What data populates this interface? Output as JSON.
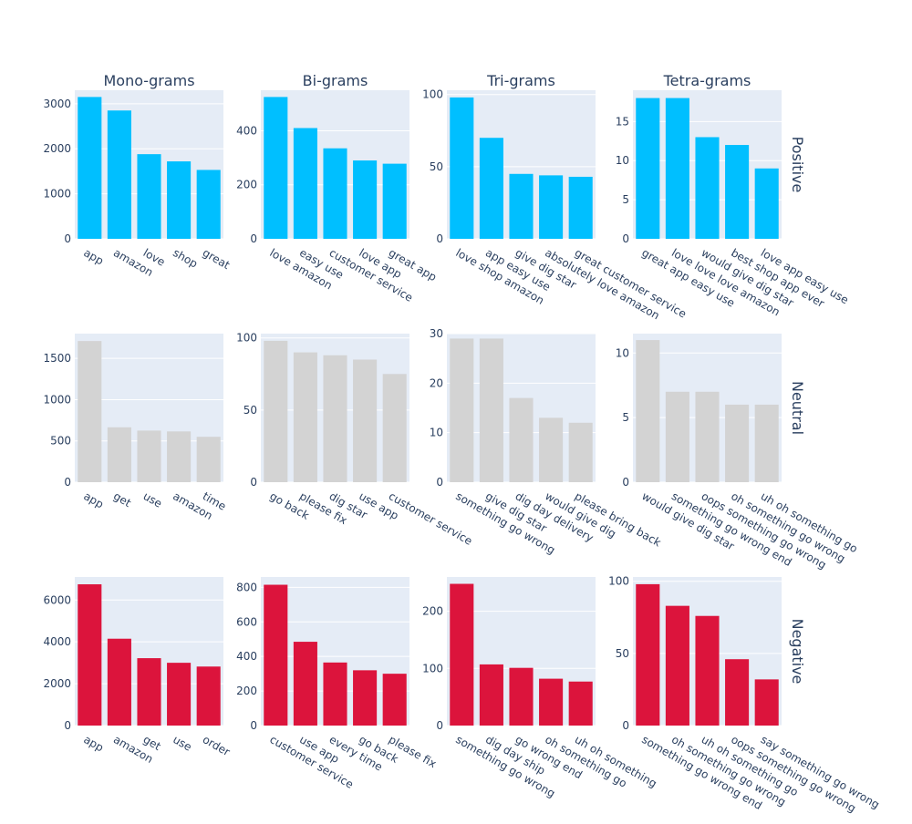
{
  "colors": {
    "Positive": "#00bfff",
    "Neutral": "#d3d3d3",
    "Negative": "#dc143c",
    "plot_bg": "#e5ecf6",
    "grid": "#ffffff",
    "text": "#2a3f5f"
  },
  "column_titles": [
    "Mono-grams",
    "Bi-grams",
    "Tri-grams",
    "Tetra-grams"
  ],
  "row_labels": [
    "Positive",
    "Neutral",
    "Negative"
  ],
  "chart_data": [
    {
      "type": "bar",
      "row": "Positive",
      "column": "Mono-grams",
      "categories": [
        "app",
        "amazon",
        "love",
        "shop",
        "great"
      ],
      "values": [
        3150,
        2850,
        1880,
        1720,
        1530
      ],
      "ylim": [
        0,
        3300
      ],
      "ticks": [
        0,
        1000,
        2000,
        3000
      ]
    },
    {
      "type": "bar",
      "row": "Positive",
      "column": "Bi-grams",
      "categories": [
        "love amazon",
        "easy use",
        "customer service",
        "love app",
        "great app"
      ],
      "values": [
        525,
        410,
        335,
        290,
        278
      ],
      "ylim": [
        0,
        550
      ],
      "ticks": [
        0,
        200,
        400
      ]
    },
    {
      "type": "bar",
      "row": "Positive",
      "column": "Tri-grams",
      "categories": [
        "love shop amazon",
        "app easy use",
        "give dig star",
        "absolutely love amazon",
        "great customer service"
      ],
      "values": [
        98,
        70,
        45,
        44,
        43
      ],
      "ylim": [
        0,
        103
      ],
      "ticks": [
        0,
        50,
        100
      ]
    },
    {
      "type": "bar",
      "row": "Positive",
      "column": "Tetra-grams",
      "categories": [
        "great app easy use",
        "love love love amazon",
        "would give dig star",
        "best shop app ever",
        "love app easy use"
      ],
      "values": [
        18,
        18,
        13,
        12,
        9
      ],
      "ylim": [
        0,
        19
      ],
      "ticks": [
        0,
        5,
        10,
        15
      ]
    },
    {
      "type": "bar",
      "row": "Neutral",
      "column": "Mono-grams",
      "categories": [
        "app",
        "get",
        "use",
        "amazon",
        "time"
      ],
      "values": [
        1710,
        665,
        625,
        615,
        550
      ],
      "ylim": [
        0,
        1800
      ],
      "ticks": [
        0,
        500,
        1000,
        1500
      ]
    },
    {
      "type": "bar",
      "row": "Neutral",
      "column": "Bi-grams",
      "categories": [
        "go back",
        "please fix",
        "dig star",
        "use app",
        "customer service"
      ],
      "values": [
        98,
        90,
        88,
        85,
        75
      ],
      "ylim": [
        0,
        103
      ],
      "ticks": [
        0,
        50,
        100
      ]
    },
    {
      "type": "bar",
      "row": "Neutral",
      "column": "Tri-grams",
      "categories": [
        "something go wrong",
        "give dig star",
        "dig day delivery",
        "would give dig",
        "please bring back"
      ],
      "values": [
        29,
        29,
        17,
        13,
        12
      ],
      "ylim": [
        0,
        30
      ],
      "ticks": [
        0,
        10,
        20,
        30
      ]
    },
    {
      "type": "bar",
      "row": "Neutral",
      "column": "Tetra-grams",
      "categories": [
        "would give dig star",
        "something go wrong end",
        "oops something go wrong",
        "oh something go wrong",
        "uh oh something go"
      ],
      "values": [
        11,
        7,
        7,
        6,
        6
      ],
      "ylim": [
        0,
        11.5
      ],
      "ticks": [
        0,
        5,
        10
      ]
    },
    {
      "type": "bar",
      "row": "Negative",
      "column": "Mono-grams",
      "categories": [
        "app",
        "amazon",
        "get",
        "use",
        "order"
      ],
      "values": [
        6750,
        4150,
        3220,
        3000,
        2820
      ],
      "ylim": [
        0,
        7100
      ],
      "ticks": [
        0,
        2000,
        4000,
        6000
      ]
    },
    {
      "type": "bar",
      "row": "Negative",
      "column": "Bi-grams",
      "categories": [
        "customer service",
        "use app",
        "every time",
        "go back",
        "please fix"
      ],
      "values": [
        815,
        485,
        365,
        320,
        300
      ],
      "ylim": [
        0,
        860
      ],
      "ticks": [
        0,
        200,
        400,
        600,
        800
      ]
    },
    {
      "type": "bar",
      "row": "Negative",
      "column": "Tri-grams",
      "categories": [
        "something go wrong",
        "dig day ship",
        "go wrong end",
        "oh something go",
        "uh oh something"
      ],
      "values": [
        248,
        107,
        101,
        82,
        77
      ],
      "ylim": [
        0,
        260
      ],
      "ticks": [
        0,
        100,
        200
      ]
    },
    {
      "type": "bar",
      "row": "Negative",
      "column": "Tetra-grams",
      "categories": [
        "something go wrong end",
        "oh something go wrong",
        "uh oh something go",
        "oops something go wrong",
        "say something go wrong"
      ],
      "values": [
        98,
        83,
        76,
        46,
        32
      ],
      "ylim": [
        0,
        103
      ],
      "ticks": [
        0,
        50,
        100
      ]
    }
  ]
}
